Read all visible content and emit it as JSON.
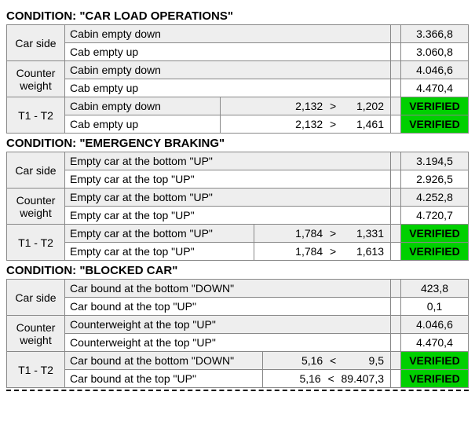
{
  "colors": {
    "bg_grey": "#eeeeee",
    "bg_white": "#ffffff",
    "border": "#888888",
    "verified_bg": "#00d000",
    "text": "#000000"
  },
  "sections": [
    {
      "title": "CONDITION: \"CAR LOAD OPERATIONS\"",
      "groups": [
        {
          "label": "Car side",
          "rows": [
            {
              "desc": "Cabin empty down",
              "value": "3.366,8",
              "alt": false
            },
            {
              "desc": "Cab empty up",
              "value": "3.060,8",
              "alt": true
            }
          ]
        },
        {
          "label": "Counter weight",
          "rows": [
            {
              "desc": "Cabin empty down",
              "value": "4.046,6",
              "alt": false
            },
            {
              "desc": "Cab empty up",
              "value": "4.470,4",
              "alt": true
            }
          ]
        },
        {
          "label": "T1 - T2",
          "rows": [
            {
              "desc": "Cabin empty down",
              "left": "2,132",
              "op": ">",
              "right": "1,202",
              "status": "VERIFIED",
              "alt": false
            },
            {
              "desc": "Cab empty up",
              "left": "2,132",
              "op": ">",
              "right": "1,461",
              "status": "VERIFIED",
              "alt": true
            }
          ]
        }
      ]
    },
    {
      "title": "CONDITION: \"EMERGENCY BRAKING\"",
      "groups": [
        {
          "label": "Car side",
          "rows": [
            {
              "desc": "Empty car at the bottom \"UP\"",
              "value": "3.194,5",
              "alt": false
            },
            {
              "desc": "Empty car at the top \"UP\"",
              "value": "2.926,5",
              "alt": true
            }
          ]
        },
        {
          "label": "Counter weight",
          "rows": [
            {
              "desc": "Empty car at the bottom \"UP\"",
              "value": "4.252,8",
              "alt": false
            },
            {
              "desc": "Empty car at the top \"UP\"",
              "value": "4.720,7",
              "alt": true
            }
          ]
        },
        {
          "label": "T1 - T2",
          "rows": [
            {
              "desc": "Empty car at the bottom \"UP\"",
              "left": "1,784",
              "op": ">",
              "right": "1,331",
              "status": "VERIFIED",
              "alt": false
            },
            {
              "desc": "Empty car at the top \"UP\"",
              "left": "1,784",
              "op": ">",
              "right": "1,613",
              "status": "VERIFIED",
              "alt": true
            }
          ]
        }
      ]
    },
    {
      "title": "CONDITION: \"BLOCKED CAR\"",
      "groups": [
        {
          "label": "Car side",
          "rows": [
            {
              "desc": "Car bound at the bottom \"DOWN\"",
              "value": "423,8",
              "alt": false
            },
            {
              "desc": "Car bound at the top \"UP\"",
              "value": "0,1",
              "alt": true
            }
          ]
        },
        {
          "label": "Counter weight",
          "rows": [
            {
              "desc": "Counterweight at the top \"UP\"",
              "value": "4.046,6",
              "alt": false
            },
            {
              "desc": "Counterweight at the top \"UP\"",
              "value": "4.470,4",
              "alt": true
            }
          ]
        },
        {
          "label": "T1 - T2",
          "rows": [
            {
              "desc": "Car bound at the bottom \"DOWN\"",
              "left": "5,16",
              "op": "<",
              "right": "9,5",
              "status": "VERIFIED",
              "alt": false
            },
            {
              "desc": "Car bound at the top \"UP\"",
              "left": "5,16",
              "op": "<",
              "right": "89.407,3",
              "status": "VERIFIED",
              "alt": true
            }
          ]
        }
      ]
    }
  ]
}
